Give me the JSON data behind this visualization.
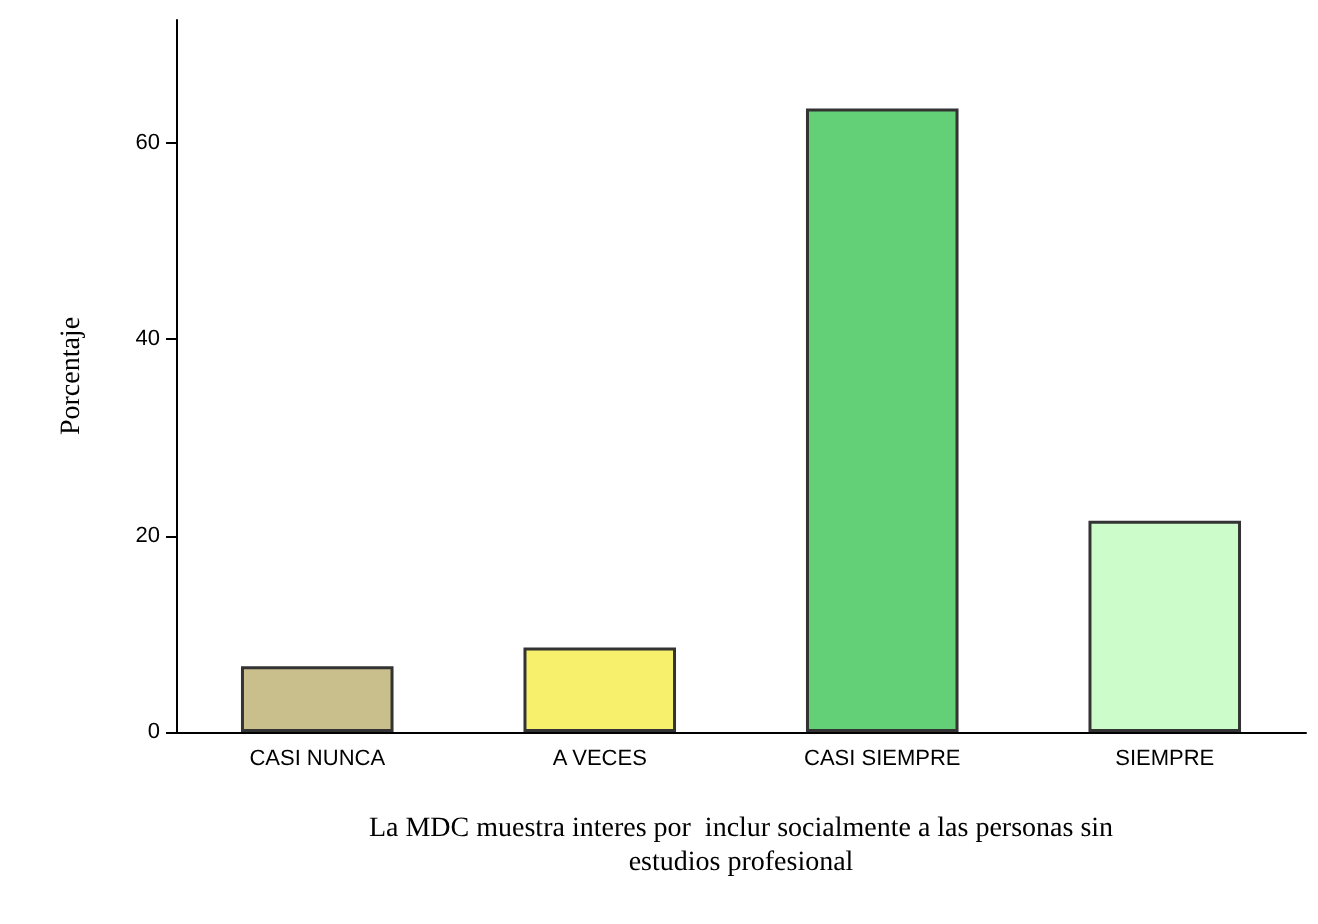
{
  "chart_data": {
    "type": "bar",
    "ylabel": "Porcentaje",
    "xlabel": "La MDC muestra interes por  inclur socialmente a las personas sin\nestudios profesional",
    "categories": [
      "CASI NUNCA",
      "A VECES",
      "CASI SIEMPRE",
      "SIEMPRE"
    ],
    "values": [
      6.7,
      8.6,
      63.5,
      21.5
    ],
    "colors": [
      "#c9bf8c",
      "#f6f06c",
      "#63d078",
      "#cdfccb"
    ],
    "ylim": [
      0,
      72.5
    ],
    "yticks": [
      0,
      20,
      40,
      60
    ]
  }
}
